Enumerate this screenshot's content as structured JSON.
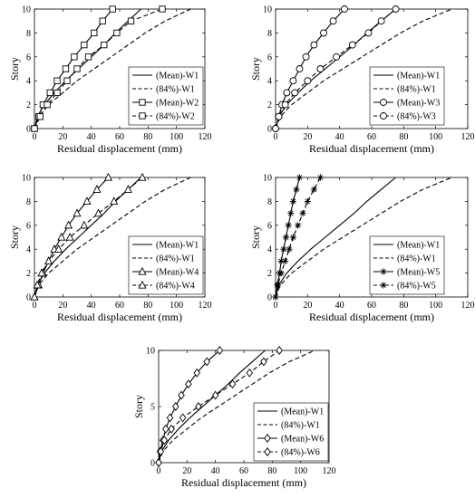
{
  "chart_data": [
    {
      "type": "line",
      "xlabel": "Residual displacement (mm)",
      "ylabel": "Story",
      "xlim": [
        0,
        120
      ],
      "ylim": [
        0,
        10
      ],
      "xticks": [
        "0",
        "20",
        "40",
        "60",
        "80",
        "100",
        "120"
      ],
      "yticks": [
        "0",
        "2",
        "4",
        "6",
        "8",
        "10"
      ],
      "legend_position": "bottom-right",
      "series": [
        {
          "name": "(Mean)-W1",
          "style": "solid",
          "marker": "none",
          "x": [
            0,
            2,
            7,
            14,
            22,
            31,
            40,
            49,
            57,
            66,
            75
          ],
          "y": [
            0,
            1,
            2,
            3,
            4,
            5,
            6,
            7,
            8,
            9,
            10
          ]
        },
        {
          "name": "(84%)-W1",
          "style": "dashed",
          "marker": "none",
          "x": [
            0,
            3,
            10,
            20,
            30,
            42,
            54,
            66,
            78,
            92,
            110
          ],
          "y": [
            0,
            1,
            2,
            3,
            4,
            5,
            6,
            7,
            8,
            9,
            10
          ]
        },
        {
          "name": "(Mean)-W2",
          "style": "solid",
          "marker": "square",
          "x": [
            0,
            3,
            6,
            11,
            16,
            22,
            28,
            35,
            42,
            48,
            55
          ],
          "y": [
            0,
            1,
            2,
            3,
            4,
            5,
            6,
            7,
            8,
            9,
            10
          ]
        },
        {
          "name": "(84%)-W2",
          "style": "dashed",
          "marker": "square",
          "x": [
            0,
            4,
            9,
            16,
            23,
            30,
            38,
            49,
            58,
            68,
            90
          ],
          "y": [
            0,
            1,
            2,
            3,
            4,
            5,
            6,
            7,
            8,
            9,
            10
          ]
        }
      ]
    },
    {
      "type": "line",
      "xlabel": "Residual displacement (mm)",
      "ylabel": "Story",
      "xlim": [
        0,
        120
      ],
      "ylim": [
        0,
        10
      ],
      "xticks": [
        "0",
        "20",
        "40",
        "60",
        "80",
        "100",
        "120"
      ],
      "yticks": [
        "0",
        "2",
        "4",
        "6",
        "8",
        "10"
      ],
      "legend_position": "bottom-right",
      "series": [
        {
          "name": "(Mean)-W1",
          "style": "solid",
          "marker": "none",
          "x": [
            0,
            2,
            7,
            14,
            22,
            31,
            40,
            49,
            57,
            66,
            75
          ],
          "y": [
            0,
            1,
            2,
            3,
            4,
            5,
            6,
            7,
            8,
            9,
            10
          ]
        },
        {
          "name": "(84%)-W1",
          "style": "dashed",
          "marker": "none",
          "x": [
            0,
            3,
            10,
            20,
            30,
            42,
            54,
            66,
            78,
            92,
            110
          ],
          "y": [
            0,
            1,
            2,
            3,
            4,
            5,
            6,
            7,
            8,
            9,
            10
          ]
        },
        {
          "name": "(Mean)-W3",
          "style": "solid",
          "marker": "circle",
          "x": [
            0,
            2,
            4,
            7,
            11,
            15,
            19,
            24,
            30,
            36,
            43
          ],
          "y": [
            0,
            1,
            2,
            3,
            4,
            5,
            6,
            7,
            8,
            9,
            10
          ]
        },
        {
          "name": "(84%)-W3",
          "style": "dashed",
          "marker": "circle",
          "x": [
            0,
            2,
            6,
            12,
            20,
            28,
            38,
            48,
            58,
            66,
            75
          ],
          "y": [
            0,
            1,
            2,
            3,
            4,
            5,
            6,
            7,
            8,
            9,
            10
          ]
        }
      ]
    },
    {
      "type": "line",
      "xlabel": "Residual displacement (mm)",
      "ylabel": "Story",
      "xlim": [
        0,
        120
      ],
      "ylim": [
        0,
        10
      ],
      "xticks": [
        "0",
        "20",
        "40",
        "60",
        "80",
        "100",
        "120"
      ],
      "yticks": [
        "0",
        "2",
        "4",
        "6",
        "8",
        "10"
      ],
      "legend_position": "bottom-right",
      "series": [
        {
          "name": "(Mean)-W1",
          "style": "solid",
          "marker": "none",
          "x": [
            0,
            2,
            7,
            14,
            22,
            31,
            40,
            49,
            57,
            66,
            75
          ],
          "y": [
            0,
            1,
            2,
            3,
            4,
            5,
            6,
            7,
            8,
            9,
            10
          ]
        },
        {
          "name": "(84%)-W1",
          "style": "dashed",
          "marker": "none",
          "x": [
            0,
            3,
            10,
            20,
            30,
            42,
            54,
            66,
            78,
            92,
            110
          ],
          "y": [
            0,
            1,
            2,
            3,
            4,
            5,
            6,
            7,
            8,
            9,
            10
          ]
        },
        {
          "name": "(Mean)-W4",
          "style": "solid",
          "marker": "triangle",
          "x": [
            0,
            3,
            6,
            10,
            14,
            19,
            24,
            30,
            37,
            44,
            52
          ],
          "y": [
            0,
            1,
            2,
            3,
            4,
            5,
            6,
            7,
            8,
            9,
            10
          ]
        },
        {
          "name": "(84%)-W4",
          "style": "dashed",
          "marker": "triangle",
          "x": [
            0,
            2,
            5,
            10,
            17,
            25,
            35,
            45,
            56,
            66,
            76
          ],
          "y": [
            0,
            1,
            2,
            3,
            4,
            5,
            6,
            7,
            8,
            9,
            10
          ]
        }
      ]
    },
    {
      "type": "line",
      "xlabel": "Residual displacement (mm)",
      "ylabel": "Story",
      "xlim": [
        0,
        120
      ],
      "ylim": [
        0,
        10
      ],
      "xticks": [
        "0",
        "20",
        "40",
        "60",
        "80",
        "100",
        "120"
      ],
      "yticks": [
        "0",
        "2",
        "4",
        "6",
        "8",
        "10"
      ],
      "legend_position": "bottom-right",
      "series": [
        {
          "name": "(Mean)-W1",
          "style": "solid",
          "marker": "none",
          "x": [
            0,
            2,
            7,
            14,
            22,
            31,
            40,
            49,
            57,
            66,
            75
          ],
          "y": [
            0,
            1,
            2,
            3,
            4,
            5,
            6,
            7,
            8,
            9,
            10
          ]
        },
        {
          "name": "(84%)-W1",
          "style": "dashed",
          "marker": "none",
          "x": [
            0,
            3,
            10,
            20,
            30,
            42,
            54,
            66,
            78,
            92,
            110
          ],
          "y": [
            0,
            1,
            2,
            3,
            4,
            5,
            6,
            7,
            8,
            9,
            10
          ]
        },
        {
          "name": "(Mean)-W5",
          "style": "solid",
          "marker": "asterisk",
          "x": [
            0,
            1,
            2.5,
            3.5,
            5,
            6.5,
            8,
            9.5,
            11,
            13,
            15
          ],
          "y": [
            0,
            1,
            2,
            3,
            4,
            5,
            6,
            7,
            8,
            9,
            10
          ]
        },
        {
          "name": "(84%)-W5",
          "style": "dashed",
          "marker": "asterisk",
          "x": [
            0,
            1.5,
            3.5,
            6,
            8.5,
            11,
            14,
            17,
            20,
            24,
            28
          ],
          "y": [
            0,
            1,
            2,
            3,
            4,
            5,
            6,
            7,
            8,
            9,
            10
          ]
        }
      ]
    },
    {
      "type": "line",
      "xlabel": "Residual displacement (mm)",
      "ylabel": "Story",
      "xlim": [
        0,
        120
      ],
      "ylim": [
        0,
        10
      ],
      "xticks": [
        "0",
        "20",
        "40",
        "60",
        "80",
        "100",
        "120"
      ],
      "yticks": [
        "0",
        "5",
        "10"
      ],
      "legend_position": "bottom-right",
      "series": [
        {
          "name": "(Mean)-W1",
          "style": "solid",
          "marker": "none",
          "x": [
            0,
            2,
            7,
            14,
            22,
            31,
            40,
            49,
            57,
            66,
            75
          ],
          "y": [
            0,
            1,
            2,
            3,
            4,
            5,
            6,
            7,
            8,
            9,
            10
          ]
        },
        {
          "name": "(84%)-W1",
          "style": "dashed",
          "marker": "none",
          "x": [
            0,
            3,
            10,
            20,
            30,
            42,
            54,
            66,
            78,
            92,
            110
          ],
          "y": [
            0,
            1,
            2,
            3,
            4,
            5,
            6,
            7,
            8,
            9,
            10
          ]
        },
        {
          "name": "(Mean)-W6",
          "style": "solid",
          "marker": "diamond",
          "x": [
            0,
            1,
            3,
            5,
            8,
            12,
            16,
            21,
            27,
            34,
            43
          ],
          "y": [
            0,
            1,
            2,
            3,
            4,
            5,
            6,
            7,
            8,
            9,
            10
          ]
        },
        {
          "name": "(84%)-W6",
          "style": "dashed",
          "marker": "diamond",
          "x": [
            0,
            1.5,
            4,
            9,
            17,
            28,
            40,
            52,
            64,
            74,
            85
          ],
          "y": [
            0,
            1,
            2,
            3,
            4,
            5,
            6,
            7,
            8,
            9,
            10
          ]
        }
      ]
    }
  ]
}
